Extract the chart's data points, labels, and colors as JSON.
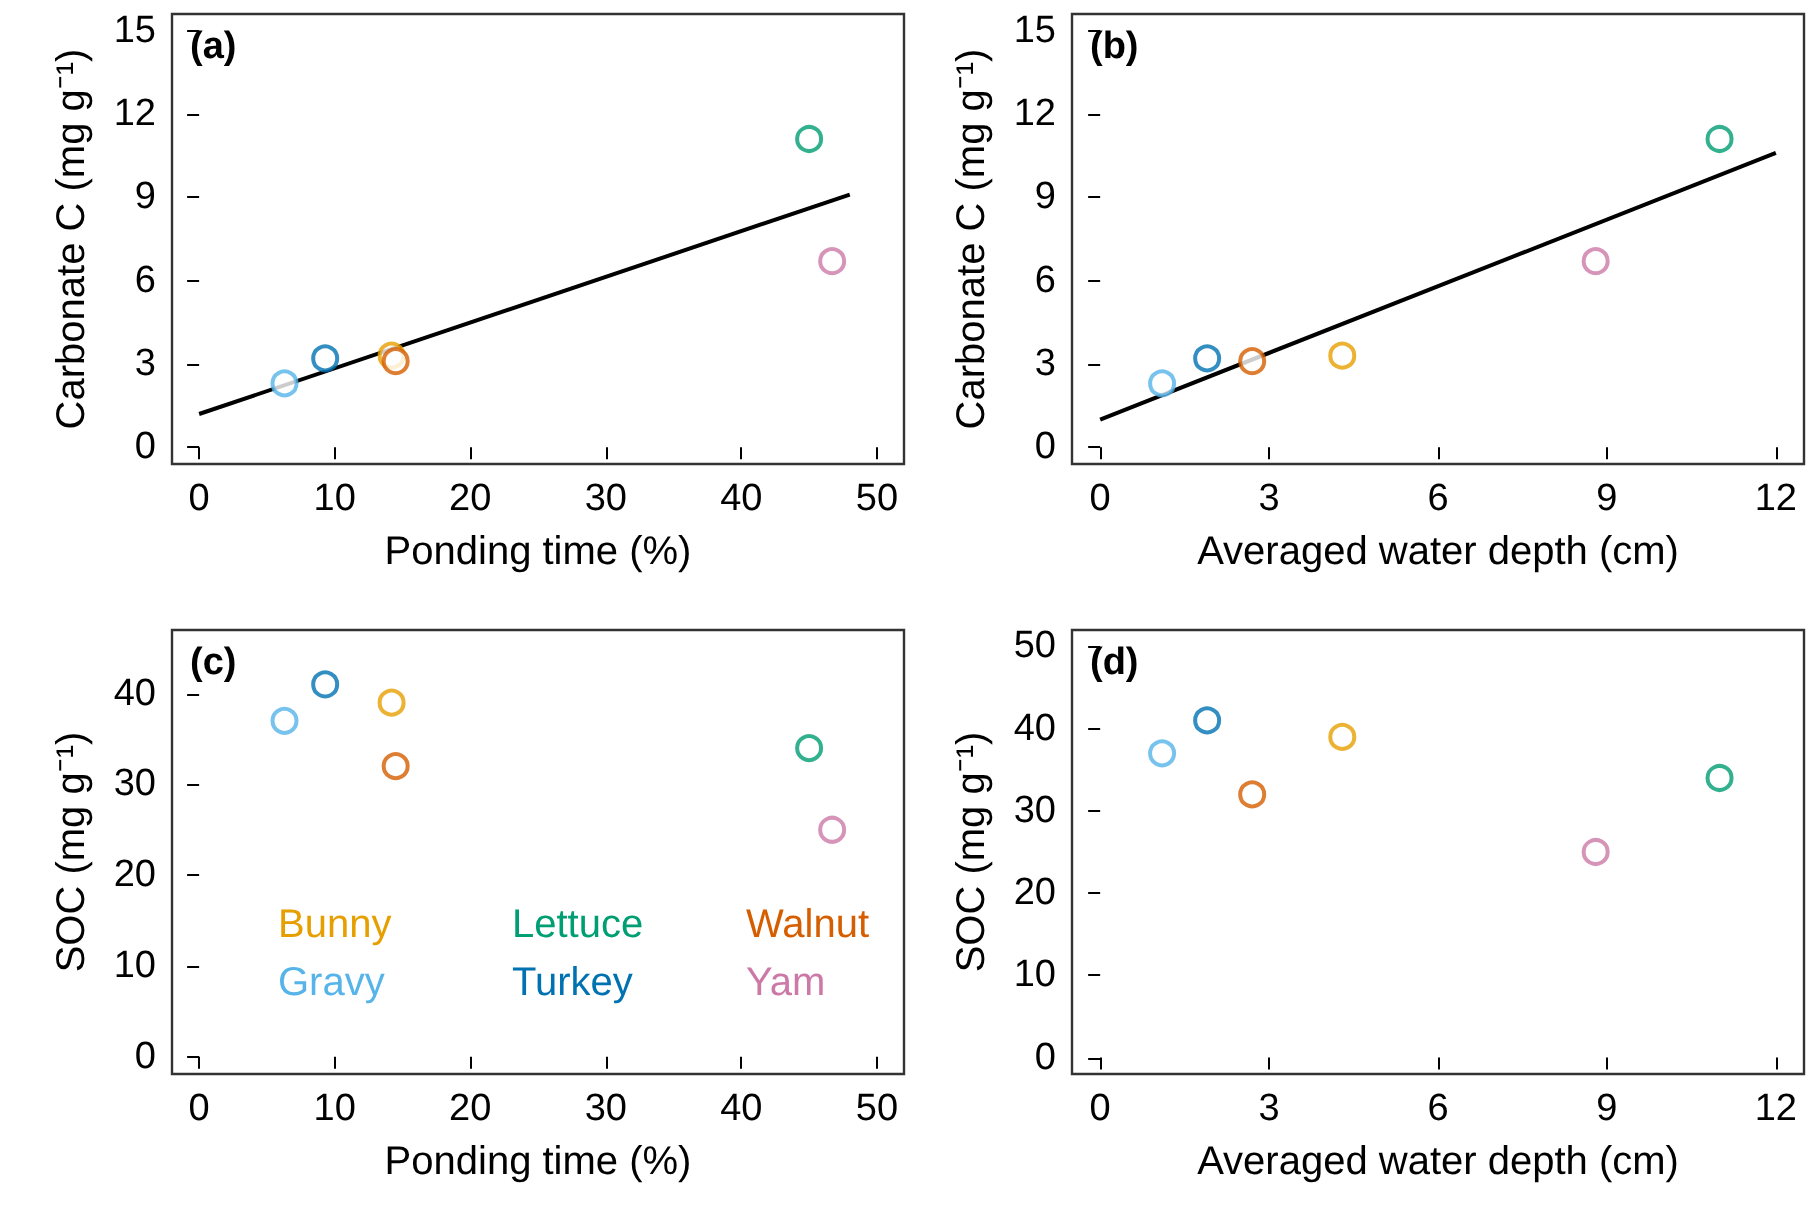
{
  "chart_data": [
    {
      "type": "scatter",
      "title": "(a)",
      "xlabel": "Ponding time (%)",
      "ylabel": "Carbonate C (mg g⁻¹)",
      "xlim": [
        -2,
        52
      ],
      "ylim": [
        -0.6,
        15.6
      ],
      "xticks": [
        0,
        10,
        20,
        30,
        40,
        50
      ],
      "yticks": [
        0,
        3,
        6,
        9,
        12,
        15
      ],
      "grid": false,
      "legend": false,
      "marker": "circle",
      "series": [
        {
          "color": "#e69f00",
          "x": [
            14.2
          ],
          "values": [
            3.3
          ]
        },
        {
          "color": "#56b4e9",
          "x": [
            6.3
          ],
          "values": [
            2.3
          ]
        },
        {
          "color": "#009e73",
          "x": [
            45
          ],
          "values": [
            11.1
          ]
        },
        {
          "color": "#0072b2",
          "x": [
            9.3
          ],
          "values": [
            3.2
          ]
        },
        {
          "color": "#d55e00",
          "x": [
            14.5
          ],
          "values": [
            3.1
          ]
        },
        {
          "color": "#cc79a7",
          "x": [
            46.7
          ],
          "values": [
            6.7
          ]
        },
        {
          "type": "line",
          "color": "#000000",
          "marker": "none",
          "x": [
            0,
            48
          ],
          "values": [
            1.2,
            9.1
          ]
        }
      ]
    },
    {
      "type": "scatter",
      "title": "(b)",
      "xlabel": "Averaged water depth (cm)",
      "ylabel": "Carbonate C (mg g⁻¹)",
      "xlim": [
        -0.5,
        12.5
      ],
      "ylim": [
        -0.6,
        15.6
      ],
      "xticks": [
        0,
        3,
        6,
        9,
        12
      ],
      "yticks": [
        0,
        3,
        6,
        9,
        12,
        15
      ],
      "grid": false,
      "legend": false,
      "marker": "circle",
      "series": [
        {
          "color": "#e69f00",
          "x": [
            4.3
          ],
          "values": [
            3.3
          ]
        },
        {
          "color": "#56b4e9",
          "x": [
            1.1
          ],
          "values": [
            2.3
          ]
        },
        {
          "color": "#009e73",
          "x": [
            11
          ],
          "values": [
            11.1
          ]
        },
        {
          "color": "#0072b2",
          "x": [
            1.9
          ],
          "values": [
            3.2
          ]
        },
        {
          "color": "#d55e00",
          "x": [
            2.7
          ],
          "values": [
            3.1
          ]
        },
        {
          "color": "#cc79a7",
          "x": [
            8.8
          ],
          "values": [
            6.7
          ]
        },
        {
          "type": "line",
          "color": "#000000",
          "marker": "none",
          "x": [
            0,
            12
          ],
          "values": [
            1.0,
            10.6
          ]
        }
      ]
    },
    {
      "type": "scatter",
      "title": "(c)",
      "xlabel": "Ponding time (%)",
      "ylabel": "SOC (mg g⁻¹)",
      "xlim": [
        -2,
        52
      ],
      "ylim": [
        -1.9,
        47
      ],
      "xticks": [
        0,
        10,
        20,
        30,
        40,
        50
      ],
      "yticks": [
        0,
        10,
        20,
        30,
        40
      ],
      "grid": false,
      "legend": "bottom",
      "marker": "circle",
      "series": [
        {
          "name": "Bunny",
          "color": "#e69f00",
          "x": [
            14.2
          ],
          "values": [
            39
          ]
        },
        {
          "name": "Gravy",
          "color": "#56b4e9",
          "x": [
            6.3
          ],
          "values": [
            37
          ]
        },
        {
          "name": "Lettuce",
          "color": "#009e73",
          "x": [
            45
          ],
          "values": [
            34
          ]
        },
        {
          "name": "Turkey",
          "color": "#0072b2",
          "x": [
            9.3
          ],
          "values": [
            41
          ]
        },
        {
          "name": "Walnut",
          "color": "#d55e00",
          "x": [
            14.5
          ],
          "values": [
            32
          ]
        },
        {
          "name": "Yam",
          "color": "#cc79a7",
          "x": [
            46.7
          ],
          "values": [
            25
          ]
        }
      ]
    },
    {
      "type": "scatter",
      "title": "(d)",
      "xlabel": "Averaged water depth (cm)",
      "ylabel": "SOC (mg g⁻¹)",
      "xlim": [
        -0.5,
        12.5
      ],
      "ylim": [
        -2,
        52
      ],
      "xticks": [
        0,
        3,
        6,
        9,
        12
      ],
      "yticks": [
        0,
        10,
        20,
        30,
        40,
        50
      ],
      "grid": false,
      "legend": false,
      "marker": "circle",
      "series": [
        {
          "color": "#e69f00",
          "x": [
            4.3
          ],
          "values": [
            39
          ]
        },
        {
          "color": "#56b4e9",
          "x": [
            1.1
          ],
          "values": [
            37
          ]
        },
        {
          "color": "#009e73",
          "x": [
            11
          ],
          "values": [
            34
          ]
        },
        {
          "color": "#0072b2",
          "x": [
            1.9
          ],
          "values": [
            41
          ]
        },
        {
          "color": "#d55e00",
          "x": [
            2.7
          ],
          "values": [
            32
          ]
        },
        {
          "color": "#cc79a7",
          "x": [
            8.8
          ],
          "values": [
            25
          ]
        }
      ]
    }
  ]
}
